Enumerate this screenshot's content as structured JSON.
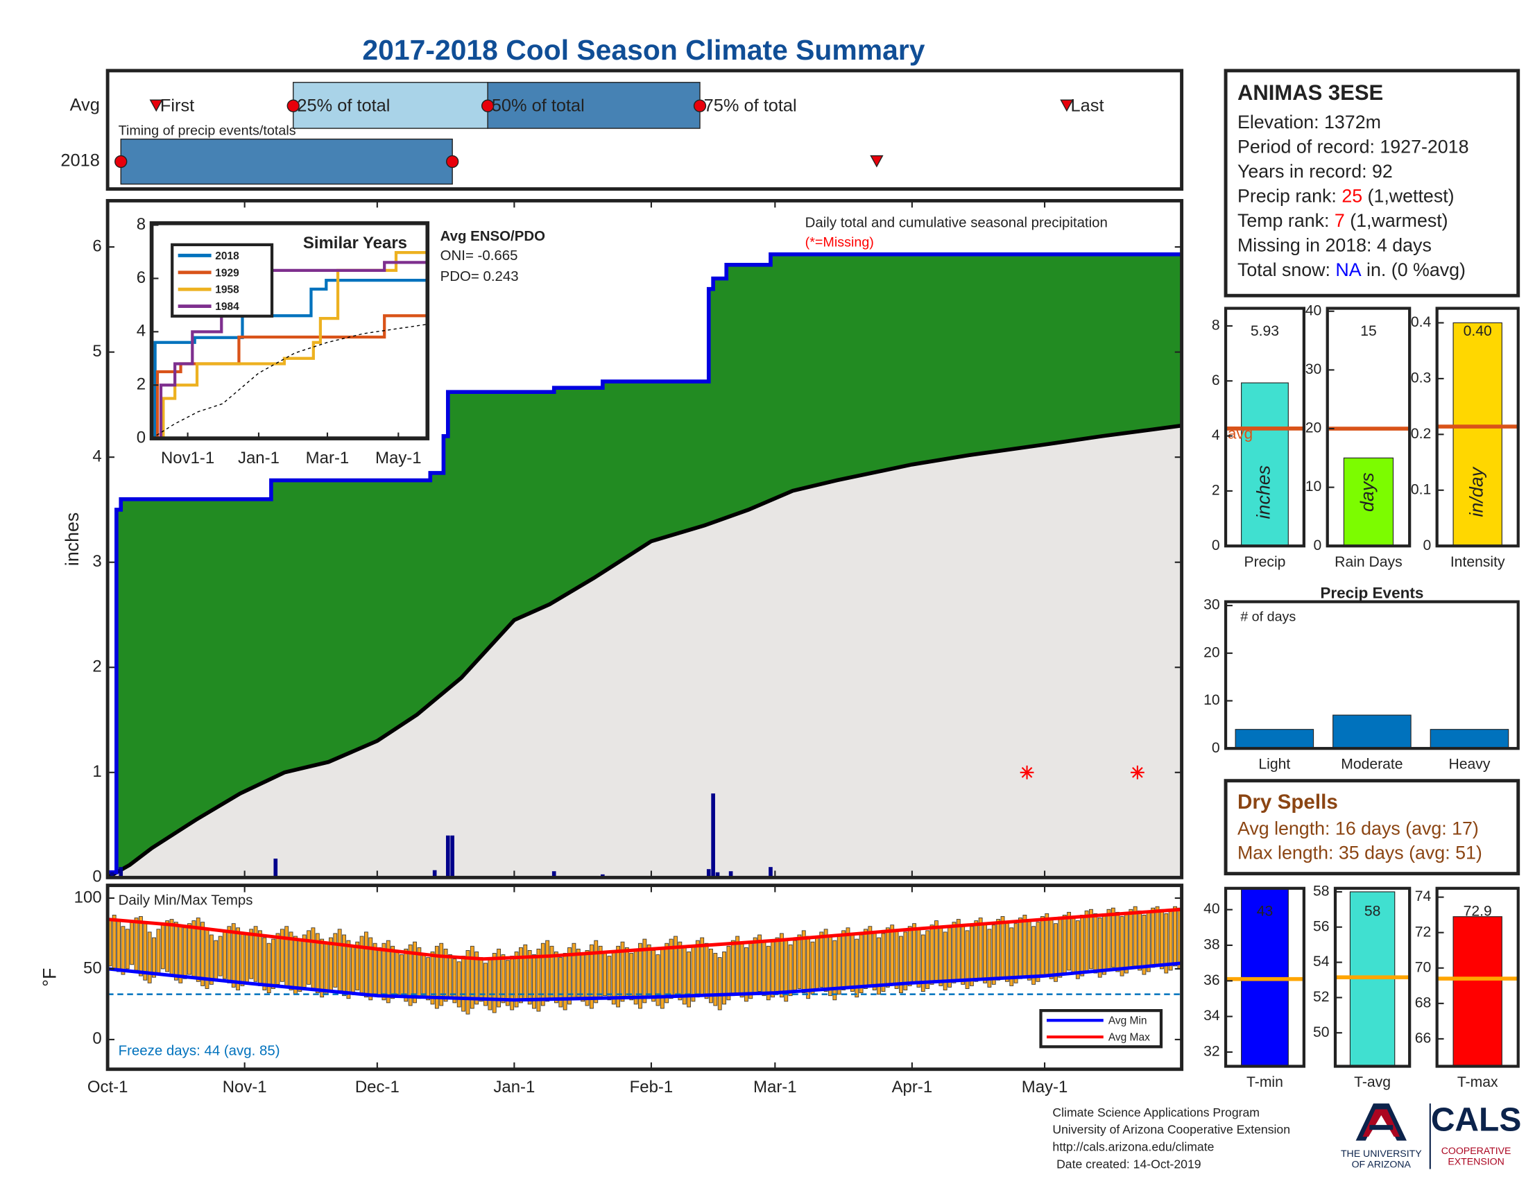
{
  "title": "2017-2018 Cool Season Climate Summary",
  "station": {
    "name": "ANIMAS 3ESE",
    "lines": [
      {
        "parts": [
          "Elevation: 1372m"
        ]
      },
      {
        "parts": [
          "Period of record: 1927-2018"
        ]
      },
      {
        "parts": [
          "Years in record: 92"
        ]
      },
      {
        "parts": [
          "Precip rank: ",
          "25",
          " (1,wettest)"
        ],
        "color": "#FF0000"
      },
      {
        "parts": [
          "Temp rank: ",
          "7",
          " (1,warmest)"
        ],
        "color": "#FF0000"
      },
      {
        "parts": [
          "Missing in 2018: 4 days"
        ]
      },
      {
        "parts": [
          "Total snow: ",
          "NA",
          " in. (0 %avg)"
        ],
        "color": "#0000FF"
      }
    ]
  },
  "dry_spells": {
    "title": "Dry Spells",
    "lines": [
      "Avg length: 16 days (avg: 17)",
      "Max length: 35 days (avg: 51)"
    ],
    "color": "#8B4513"
  },
  "footer": {
    "lines": [
      "Climate Science Applications Program",
      "University of Arizona Cooperative Extension",
      "http://cals.arizona.edu/climate",
      "Date created: 14-Oct-2019"
    ],
    "logo_ua": [
      "THE UNIVERSITY",
      "OF ARIZONA"
    ],
    "logo_cals": "CALS",
    "logo_ext": [
      "COOPERATIVE",
      "EXTENSION"
    ]
  },
  "chart_data": [
    {
      "type": "timing",
      "title": "Timing of precip events/totals",
      "rows": [
        "Avg",
        "2018"
      ],
      "xlim": [
        0,
        243
      ],
      "avg": {
        "first": 11,
        "q25": 42,
        "q50": 86,
        "q75": 134,
        "last": 217
      },
      "labels": {
        "first": "First",
        "q25": "25% of total",
        "q50": "50% of total",
        "q75": "75% of total",
        "last": "Last"
      },
      "current": {
        "start": 3,
        "end": 78,
        "last": 174
      },
      "light_color": "#A9D3E8",
      "dark_color": "#4682B4",
      "marker_color": "#E8000B"
    },
    {
      "type": "area",
      "title": "Daily total and cumulative seasonal precipitation",
      "subtitle": "(*=Missing)",
      "ylabel": "inches",
      "xlim": [
        0,
        243
      ],
      "ylim": [
        0,
        6.44
      ],
      "yticks": [
        0,
        1,
        2,
        3,
        4,
        5,
        6
      ],
      "cumulative": {
        "color": "#0000E0",
        "fill": "#228B22",
        "x": [
          0,
          2,
          2,
          3,
          3,
          37,
          37,
          73,
          73,
          76,
          76,
          77,
          77,
          101,
          101,
          112,
          112,
          136,
          136,
          137,
          137,
          140,
          140,
          150,
          150,
          243
        ],
        "values": [
          0.05,
          0.05,
          3.5,
          3.5,
          3.6,
          3.6,
          3.78,
          3.78,
          3.85,
          3.85,
          4.2,
          4.2,
          4.62,
          4.62,
          4.66,
          4.66,
          4.72,
          4.72,
          5.6,
          5.6,
          5.7,
          5.7,
          5.83,
          5.83,
          5.93,
          5.93
        ]
      },
      "average": {
        "color": "#000000",
        "fill": "#E8E6E4",
        "x": [
          0,
          5,
          10,
          20,
          30,
          40,
          50,
          61,
          70,
          80,
          92,
          100,
          110,
          123,
          135,
          145,
          155,
          165,
          182,
          195,
          212,
          225,
          243
        ],
        "values": [
          0,
          0.12,
          0.28,
          0.55,
          0.8,
          1.0,
          1.1,
          1.3,
          1.55,
          1.9,
          2.45,
          2.6,
          2.85,
          3.2,
          3.35,
          3.5,
          3.68,
          3.78,
          3.93,
          4.02,
          4.12,
          4.2,
          4.3
        ]
      },
      "daily": {
        "color": "#00008B",
        "x": [
          1,
          3,
          38,
          74,
          77,
          78,
          101,
          112,
          136,
          137,
          138,
          141,
          150
        ],
        "values": [
          0.05,
          0.1,
          0.18,
          0.07,
          0.4,
          0.4,
          0.06,
          0.03,
          0.08,
          0.8,
          0.05,
          0.06,
          0.1
        ]
      },
      "missing": {
        "color": "#FF0000",
        "x": [
          208,
          233
        ],
        "values": [
          1,
          1
        ]
      }
    },
    {
      "type": "line",
      "title": "Similar Years",
      "xlim": [
        0,
        237
      ],
      "ylim": [
        0,
        8.07
      ],
      "yticks": [
        0,
        2,
        4,
        6,
        8
      ],
      "xticks": [
        {
          "value": 31,
          "label": "Nov1-1"
        },
        {
          "value": 92,
          "label": "Jan-1"
        },
        {
          "value": 151,
          "label": "Mar-1"
        },
        {
          "value": 212,
          "label": "May-1"
        }
      ],
      "note_title": "Avg ENSO/PDO",
      "notes": [
        "ONI= -0.665",
        "PDO= 0.243"
      ],
      "series": [
        {
          "name": "2018",
          "color": "#0072BD",
          "x": [
            0,
            3,
            3,
            37,
            37,
            78,
            78,
            137,
            137,
            150,
            150,
            237
          ],
          "values": [
            0,
            0,
            3.6,
            3.6,
            3.78,
            3.78,
            4.6,
            4.6,
            5.6,
            5.6,
            5.93,
            5.93
          ]
        },
        {
          "name": "1929",
          "color": "#D95319",
          "x": [
            0,
            5,
            5,
            25,
            25,
            75,
            75,
            200,
            200,
            237
          ],
          "values": [
            0,
            0,
            2.5,
            2.5,
            2.8,
            2.8,
            3.8,
            3.8,
            4.6,
            4.6
          ]
        },
        {
          "name": "1958",
          "color": "#EDB120",
          "x": [
            0,
            10,
            10,
            20,
            20,
            39,
            39,
            114,
            114,
            139,
            139,
            145,
            145,
            160,
            160,
            210,
            210,
            237
          ],
          "values": [
            0,
            0,
            1.5,
            1.5,
            2.0,
            2.0,
            2.8,
            2.8,
            3.0,
            3.0,
            3.6,
            3.6,
            4.5,
            4.5,
            6.3,
            6.3,
            6.97,
            6.97
          ]
        },
        {
          "name": "1984",
          "color": "#7E2F8E",
          "x": [
            0,
            8,
            8,
            20,
            20,
            35,
            35,
            60,
            60,
            92,
            92,
            200,
            200,
            237
          ],
          "values": [
            0,
            0,
            2.0,
            2.0,
            2.8,
            2.8,
            4.0,
            4.0,
            5.6,
            5.6,
            6.3,
            6.3,
            6.6,
            6.6
          ]
        },
        {
          "color": "#000000",
          "dashed": true,
          "x": [
            0,
            20,
            40,
            61,
            92,
            123,
            151,
            182,
            212,
            237
          ],
          "values": [
            0,
            0.55,
            1.0,
            1.3,
            2.45,
            3.2,
            3.6,
            3.93,
            4.12,
            4.28
          ]
        }
      ]
    },
    {
      "type": "range",
      "title": "Daily Min/Max Temps",
      "ylabel": "°F",
      "annotation": "Freeze days: 44 (avg. 85)",
      "xlim": [
        0,
        243
      ],
      "ylim": [
        -21,
        109
      ],
      "yticks": [
        0,
        50,
        100
      ],
      "xticks": [
        {
          "value": 0,
          "label": "Oct-1"
        },
        {
          "value": 31,
          "label": "Nov-1"
        },
        {
          "value": 61,
          "label": "Dec-1"
        },
        {
          "value": 92,
          "label": "Jan-1"
        },
        {
          "value": 123,
          "label": "Feb-1"
        },
        {
          "value": 151,
          "label": "Mar-1"
        },
        {
          "value": 182,
          "label": "Apr-1"
        },
        {
          "value": 212,
          "label": "May-1"
        }
      ],
      "bar_color": "#F5A623",
      "freeze": 32,
      "freeze_color": "#0072BD",
      "high": [
        85,
        88,
        84,
        80,
        78,
        83,
        86,
        87,
        82,
        76,
        72,
        78,
        81,
        84,
        85,
        83,
        80,
        79,
        82,
        84,
        86,
        83,
        78,
        74,
        70,
        73,
        77,
        80,
        82,
        79,
        76,
        74,
        78,
        80,
        77,
        72,
        68,
        71,
        75,
        78,
        80,
        76,
        73,
        70,
        74,
        77,
        79,
        75,
        71,
        68,
        72,
        75,
        78,
        74,
        70,
        66,
        69,
        73,
        76,
        72,
        68,
        65,
        68,
        70,
        66,
        62,
        60,
        64,
        67,
        69,
        65,
        61,
        58,
        62,
        66,
        68,
        64,
        60,
        57,
        55,
        59,
        63,
        66,
        62,
        58,
        54,
        57,
        61,
        64,
        60,
        56,
        59,
        62,
        65,
        67,
        63,
        60,
        64,
        68,
        70,
        66,
        62,
        58,
        61,
        65,
        68,
        64,
        60,
        63,
        67,
        70,
        66,
        62,
        59,
        63,
        66,
        69,
        65,
        61,
        64,
        68,
        71,
        67,
        63,
        60,
        64,
        68,
        71,
        73,
        69,
        65,
        62,
        66,
        70,
        72,
        68,
        64,
        61,
        58,
        62,
        66,
        70,
        73,
        69,
        65,
        68,
        72,
        74,
        70,
        66,
        69,
        72,
        75,
        71,
        67,
        70,
        74,
        77,
        73,
        69,
        72,
        76,
        78,
        74,
        70,
        73,
        77,
        79,
        75,
        71,
        74,
        78,
        80,
        76,
        72,
        75,
        79,
        81,
        77,
        73,
        76,
        80,
        82,
        78,
        74,
        77,
        81,
        84,
        80,
        76,
        79,
        83,
        85,
        81,
        77,
        80,
        84,
        86,
        82,
        78,
        81,
        85,
        87,
        83,
        79,
        82,
        86,
        88,
        84,
        80,
        83,
        87,
        89,
        85,
        82,
        86,
        88,
        90,
        87,
        84,
        88,
        91,
        92,
        89,
        86,
        89,
        92,
        93,
        90,
        87,
        90,
        92,
        94,
        91,
        88,
        91,
        93,
        94,
        92,
        89,
        92,
        94,
        93
      ],
      "low": [
        52,
        50,
        48,
        46,
        50,
        53,
        49,
        45,
        42,
        40,
        44,
        47,
        50,
        48,
        45,
        42,
        40,
        43,
        46,
        44,
        41,
        38,
        36,
        39,
        42,
        45,
        43,
        40,
        37,
        35,
        38,
        40,
        43,
        41,
        38,
        35,
        33,
        36,
        39,
        41,
        38,
        35,
        32,
        34,
        37,
        39,
        36,
        33,
        30,
        32,
        35,
        37,
        34,
        31,
        29,
        32,
        35,
        33,
        30,
        28,
        31,
        30,
        28,
        26,
        29,
        32,
        30,
        27,
        24,
        26,
        29,
        31,
        28,
        25,
        22,
        24,
        27,
        29,
        26,
        23,
        20,
        18,
        22,
        25,
        27,
        24,
        21,
        19,
        23,
        26,
        24,
        21,
        23,
        26,
        28,
        25,
        22,
        20,
        24,
        27,
        29,
        26,
        23,
        21,
        25,
        28,
        30,
        27,
        24,
        22,
        26,
        29,
        31,
        28,
        25,
        23,
        27,
        30,
        28,
        25,
        22,
        26,
        29,
        27,
        24,
        22,
        26,
        29,
        31,
        28,
        25,
        23,
        27,
        30,
        32,
        29,
        26,
        24,
        21,
        25,
        28,
        31,
        33,
        30,
        27,
        29,
        32,
        34,
        31,
        28,
        30,
        33,
        30,
        27,
        31,
        34,
        36,
        33,
        29,
        32,
        35,
        37,
        34,
        31,
        28,
        32,
        35,
        37,
        34,
        30,
        33,
        36,
        38,
        35,
        32,
        34,
        37,
        39,
        36,
        33,
        35,
        38,
        40,
        37,
        34,
        36,
        39,
        41,
        38,
        35,
        37,
        40,
        42,
        39,
        36,
        38,
        41,
        43,
        40,
        37,
        39,
        42,
        44,
        41,
        38,
        40,
        43,
        45,
        42,
        39,
        41,
        44,
        46,
        43,
        41,
        44,
        47,
        49,
        46,
        43,
        45,
        48,
        50,
        47,
        44,
        46,
        49,
        51,
        48,
        45,
        47,
        50,
        52,
        49,
        46,
        48,
        51,
        53,
        50,
        47,
        49,
        52,
        50
      ],
      "series": [
        {
          "name": "Avg Min",
          "color": "#0000FF",
          "x": [
            0,
            31,
            61,
            92,
            123,
            151,
            182,
            212,
            243
          ],
          "values": [
            50,
            40,
            31,
            28,
            30,
            33,
            40,
            45,
            54
          ]
        },
        {
          "name": "Avg Max",
          "color": "#FF0000",
          "x": [
            0,
            15,
            31,
            45,
            61,
            75,
            85,
            100,
            123,
            151,
            182,
            212,
            243
          ],
          "values": [
            85,
            81,
            75,
            70,
            64,
            59,
            57,
            59,
            64,
            70,
            78,
            85,
            92
          ]
        }
      ]
    },
    {
      "type": "bar",
      "xlabel": "Precip",
      "unit_label": "inches",
      "value": 5.93,
      "avg": 4.27,
      "avg_label": "avg",
      "ylim": [
        0,
        8.64
      ],
      "yticks": [
        0,
        2,
        4,
        6,
        8
      ],
      "color": "#40E0D0",
      "avg_color": "#D95319"
    },
    {
      "type": "bar",
      "xlabel": "Rain Days",
      "unit_label": "days",
      "value": 15,
      "avg": 20,
      "ylim": [
        0,
        40.5
      ],
      "yticks": [
        0,
        10,
        20,
        30,
        40
      ],
      "color": "#7CFC00",
      "avg_color": "#D95319"
    },
    {
      "type": "bar",
      "xlabel": "Intensity",
      "unit_label": "in/day",
      "value": 0.4,
      "value_label": "0.40",
      "avg": 0.214,
      "ylim": [
        0,
        0.426
      ],
      "yticks": [
        0,
        0.1,
        0.2,
        0.3,
        0.4
      ],
      "color": "#FFD700",
      "avg_color": "#D95319"
    },
    {
      "type": "bar",
      "title": "Precip Events",
      "annotation": "# of days",
      "categories": [
        "Light",
        "Moderate",
        "Heavy"
      ],
      "values": [
        4,
        7,
        4
      ],
      "ylim": [
        0,
        30.8
      ],
      "yticks": [
        0,
        10,
        20,
        30
      ],
      "color": "#0072BD"
    },
    {
      "type": "bar",
      "xlabel": "T-min",
      "value": 43,
      "avg": 36.1,
      "ylim": [
        31.2,
        41.2
      ],
      "yticks": [
        32,
        34,
        36,
        38,
        40
      ],
      "color": "#0000FF",
      "avg_color": "#FFA500"
    },
    {
      "type": "bar",
      "xlabel": "T-avg",
      "value": 58,
      "avg": 53.15,
      "ylim": [
        48.1,
        58.2
      ],
      "yticks": [
        50,
        52,
        54,
        56,
        58
      ],
      "color": "#40E0D0",
      "avg_color": "#FFA500"
    },
    {
      "type": "bar",
      "xlabel": "T-max",
      "value": 72.9,
      "avg": 69.4,
      "ylim": [
        64.45,
        74.5
      ],
      "yticks": [
        66,
        68,
        70,
        72,
        74
      ],
      "color": "#FF0000",
      "avg_color": "#FFA500"
    }
  ]
}
